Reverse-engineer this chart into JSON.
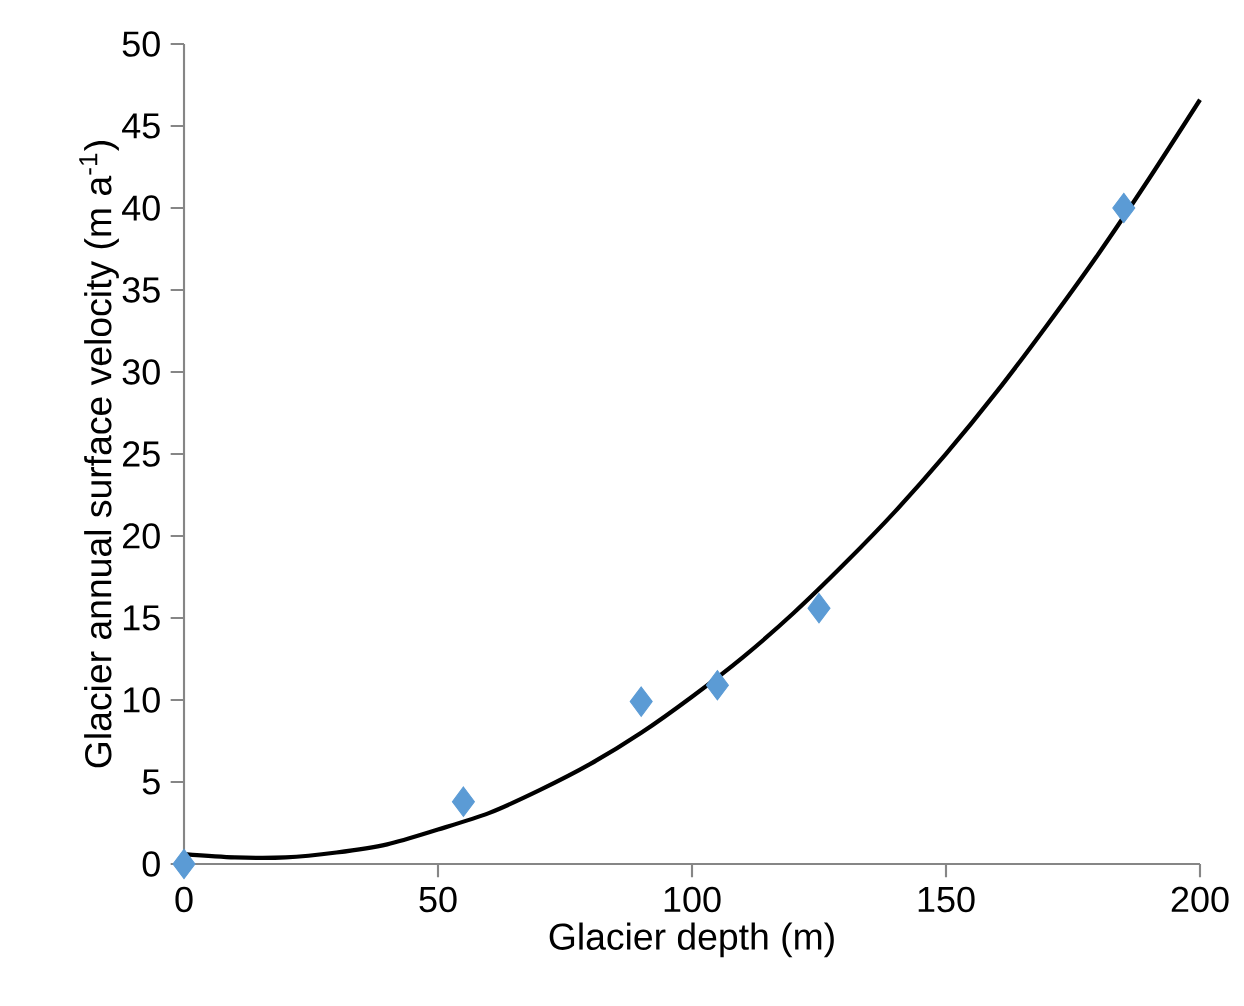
{
  "chart_data": {
    "type": "scatter",
    "xlabel": "Glacier depth (m)",
    "ylabel": "Glacier annual surface velocity (m a$^{-1}$)",
    "xlim": [
      0,
      200
    ],
    "ylim": [
      0,
      50
    ],
    "xticks": [
      0,
      50,
      100,
      150,
      200
    ],
    "yticks": [
      0,
      5,
      10,
      15,
      20,
      25,
      30,
      35,
      40,
      45,
      50
    ],
    "series": [
      {
        "color": "#5b9bd5",
        "marker": "diamond",
        "x": [
          0,
          55,
          90,
          105,
          125,
          185
        ],
        "values": [
          0,
          3.8,
          9.9,
          10.9,
          15.6,
          40
        ]
      },
      {
        "type": "line",
        "color": "#000000",
        "marker": "none",
        "line_style": "solid",
        "x": [
          0,
          10,
          20,
          30,
          40,
          50,
          60,
          70,
          80,
          90,
          100,
          110,
          120,
          130,
          140,
          150,
          160,
          170,
          180,
          190,
          200
        ],
        "values": [
          0.6,
          0.4,
          0.4,
          0.7,
          1.2,
          2.1,
          3.1,
          4.5,
          6.1,
          8,
          10.2,
          12.6,
          15.3,
          18.3,
          21.5,
          25,
          28.8,
          32.9,
          37.2,
          41.8,
          46.6
        ]
      }
    ]
  }
}
